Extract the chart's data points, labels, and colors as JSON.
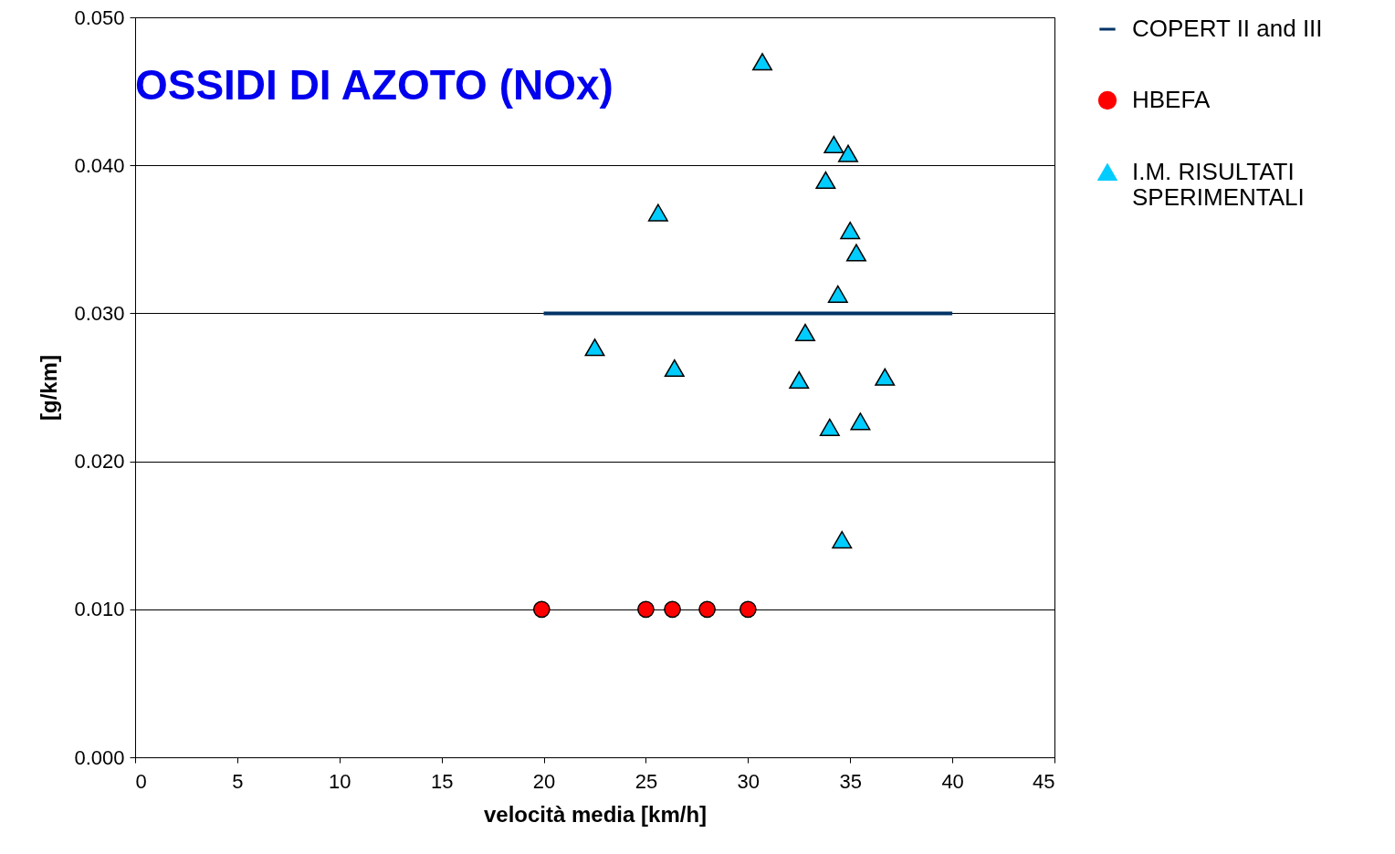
{
  "chart_data": {
    "type": "scatter",
    "title": "OSSIDI DI AZOTO (NOx)",
    "xlabel": "velocità media  [km/h]",
    "ylabel": "[g/km]",
    "xlim": [
      0,
      45
    ],
    "xticks": [
      0,
      5,
      10,
      15,
      20,
      25,
      30,
      35,
      40,
      45
    ],
    "ylim": [
      0,
      0.05
    ],
    "yticks": [
      {
        "value": 0,
        "label": "0.000"
      },
      {
        "value": 0.01,
        "label": "0.010"
      },
      {
        "value": 0.02,
        "label": "0.020"
      },
      {
        "value": 0.03,
        "label": "0.030"
      },
      {
        "value": 0.04,
        "label": "0.040"
      },
      {
        "value": 0.05,
        "label": "0.050"
      }
    ],
    "grid": "y",
    "legend": "right",
    "series": [
      {
        "name": "COPERT II and III",
        "type": "line",
        "color": "#003366",
        "marker": "none",
        "x": [
          20,
          40
        ],
        "values": [
          0.03,
          0.03
        ]
      },
      {
        "name": "HBEFA",
        "color": "#ff0000",
        "marker": "circle",
        "x": [
          19.9,
          25.0,
          26.3,
          28.0,
          30.0
        ],
        "values": [
          0.01,
          0.01,
          0.01,
          0.01,
          0.01
        ]
      },
      {
        "name": "I.M. RISULTATI SPERIMENTALI",
        "color": "#00ccff",
        "marker": "triangle",
        "x": [
          30.7,
          34.2,
          34.9,
          33.8,
          25.6,
          35.0,
          35.3,
          34.4,
          22.5,
          32.8,
          26.4,
          32.5,
          36.7,
          34.0,
          35.5,
          34.6
        ],
        "values": [
          0.047,
          0.0414,
          0.0408,
          0.039,
          0.0368,
          0.0356,
          0.0341,
          0.0313,
          0.0277,
          0.0287,
          0.0263,
          0.0255,
          0.0257,
          0.0223,
          0.0227,
          0.0147
        ]
      }
    ]
  }
}
